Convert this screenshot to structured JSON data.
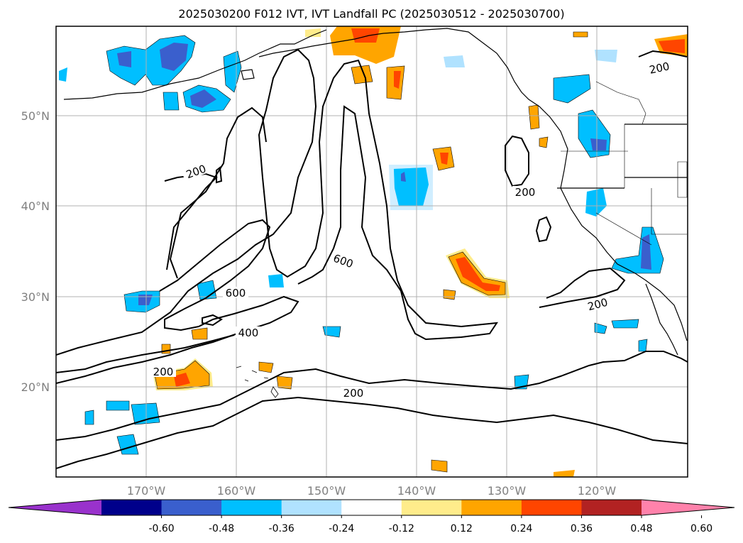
{
  "title": "2025030200 F012 IVT, IVT Landfall PC (2025030512 - 2025030700)",
  "latitude_labels": [
    "50°N",
    "40°N",
    "30°N",
    "20°N"
  ],
  "longitude_labels": [
    "170°W",
    "160°W",
    "150°W",
    "140°W",
    "130°W",
    "120°W"
  ],
  "contour_labels": [
    {
      "text": "200",
      "where": "upper-left"
    },
    {
      "text": "200",
      "where": "central-east"
    },
    {
      "text": "200",
      "where": "top-right"
    },
    {
      "text": "600",
      "where": "central"
    },
    {
      "text": "600",
      "where": "west-central"
    },
    {
      "text": "400",
      "where": "west-central"
    },
    {
      "text": "200",
      "where": "west"
    },
    {
      "text": "200",
      "where": "south-central"
    },
    {
      "text": "200",
      "where": "east"
    }
  ],
  "colorbar": {
    "ticks": [
      "-0.60",
      "-0.48",
      "-0.36",
      "-0.24",
      "-0.12",
      "0.12",
      "0.24",
      "0.36",
      "0.48",
      "0.60"
    ],
    "colors": [
      "#9932cc",
      "#00008b",
      "#3a5fcd",
      "#00bfff",
      "#b0e2ff",
      "#ffffff",
      "#ffec8b",
      "#ffa500",
      "#ff4500",
      "#b22222",
      "#ff82ab"
    ]
  },
  "colors": {
    "contour": "#000000",
    "grid": "#b0b0b0",
    "tick_label": "#808080"
  }
}
